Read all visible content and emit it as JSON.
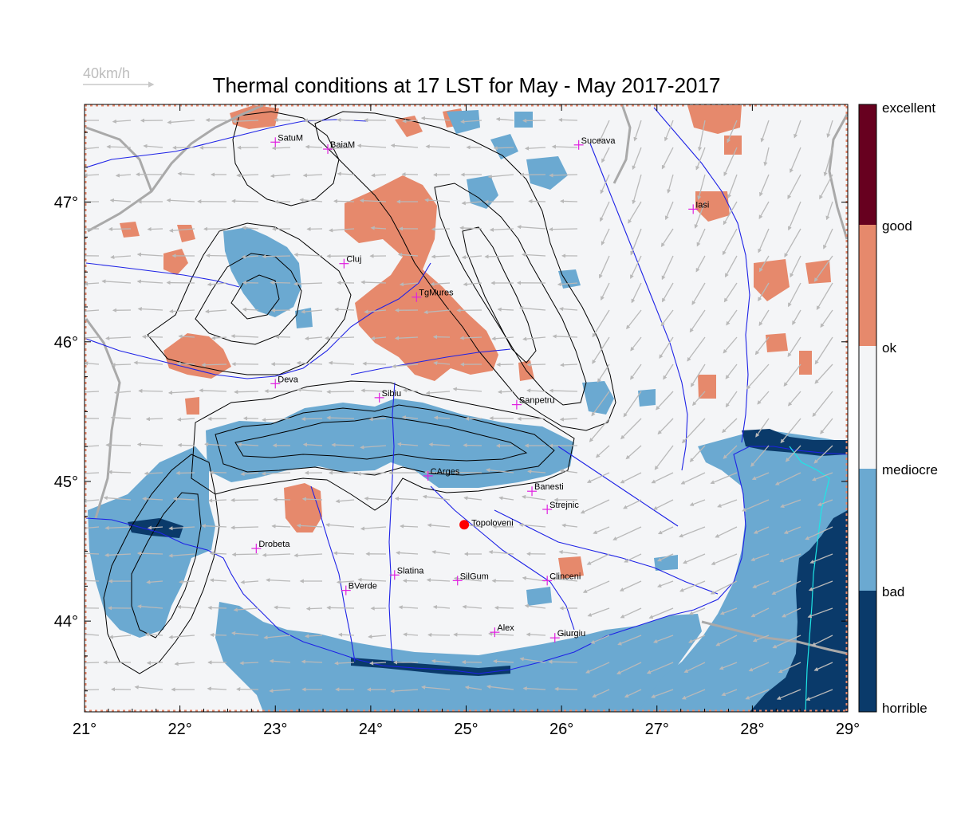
{
  "title": "Thermal conditions at 17 LST for May - May  2017-2017",
  "wind_reference": {
    "label": "40km/h",
    "speed_kmh": 40
  },
  "map": {
    "lon_range": [
      21,
      29
    ],
    "lat_range": [
      43.35,
      47.7
    ],
    "lon_ticks": [
      {
        "value": 21,
        "label": "21°"
      },
      {
        "value": 22,
        "label": "22°"
      },
      {
        "value": 23,
        "label": "23°"
      },
      {
        "value": 24,
        "label": "24°"
      },
      {
        "value": 25,
        "label": "25°"
      },
      {
        "value": 26,
        "label": "26°"
      },
      {
        "value": 27,
        "label": "27°"
      },
      {
        "value": 28,
        "label": "28°"
      },
      {
        "value": 29,
        "label": "29°"
      }
    ],
    "lat_ticks": [
      {
        "value": 44,
        "label": "44°"
      },
      {
        "value": 45,
        "label": "45°"
      },
      {
        "value": 46,
        "label": "46°"
      },
      {
        "value": 47,
        "label": "47°"
      }
    ],
    "cities": [
      {
        "name": "SatuM",
        "lon": 23.0,
        "lat": 47.43
      },
      {
        "name": "BaiaM",
        "lon": 23.55,
        "lat": 47.38
      },
      {
        "name": "Suceava",
        "lon": 26.18,
        "lat": 47.41
      },
      {
        "name": "Iasi",
        "lon": 27.38,
        "lat": 46.95
      },
      {
        "name": "Cluj",
        "lon": 23.72,
        "lat": 46.56
      },
      {
        "name": "TgMures",
        "lon": 24.48,
        "lat": 46.32
      },
      {
        "name": "Deva",
        "lon": 23.0,
        "lat": 45.7
      },
      {
        "name": "Sibiu",
        "lon": 24.09,
        "lat": 45.6
      },
      {
        "name": "Sanpetru",
        "lon": 25.53,
        "lat": 45.55
      },
      {
        "name": "CArges",
        "lon": 24.6,
        "lat": 45.04
      },
      {
        "name": "Banesti",
        "lon": 25.69,
        "lat": 44.93
      },
      {
        "name": "Strejnic",
        "lon": 25.85,
        "lat": 44.8
      },
      {
        "name": "Drobeta",
        "lon": 22.8,
        "lat": 44.52
      },
      {
        "name": "Slatina",
        "lon": 24.25,
        "lat": 44.33
      },
      {
        "name": "SilGum",
        "lon": 24.91,
        "lat": 44.29
      },
      {
        "name": "Clinceni",
        "lon": 25.85,
        "lat": 44.29
      },
      {
        "name": "BVerde",
        "lon": 23.74,
        "lat": 44.22
      },
      {
        "name": "Alex",
        "lon": 25.3,
        "lat": 43.92
      },
      {
        "name": "Giurgiu",
        "lon": 25.93,
        "lat": 43.88
      }
    ],
    "highlight": {
      "name": "Topoloveni",
      "lon": 24.98,
      "lat": 44.69,
      "color": "#ff0000"
    }
  },
  "legend": {
    "classes": [
      {
        "label": "excellent",
        "color": "#67001f"
      },
      {
        "label": "good",
        "color": "#e6896c"
      },
      {
        "label": "ok",
        "color": "#f4f5f7"
      },
      {
        "label": "mediocre",
        "color": "#6ba9d1"
      },
      {
        "label": "bad",
        "color": "#0a3a6a"
      },
      {
        "label": "horrible",
        "color": "#0a3a6a"
      }
    ]
  },
  "colors": {
    "background": "#f4f5f7",
    "good": "#e6896c",
    "mediocre": "#6ba9d1",
    "bad": "#0a3a6a",
    "rivers": "#1e22e6",
    "borders": "#a9a9a9",
    "coast": "#1ee6e6",
    "wind_arrows": "#b9b9b9",
    "city_marker": "#e020e0"
  }
}
